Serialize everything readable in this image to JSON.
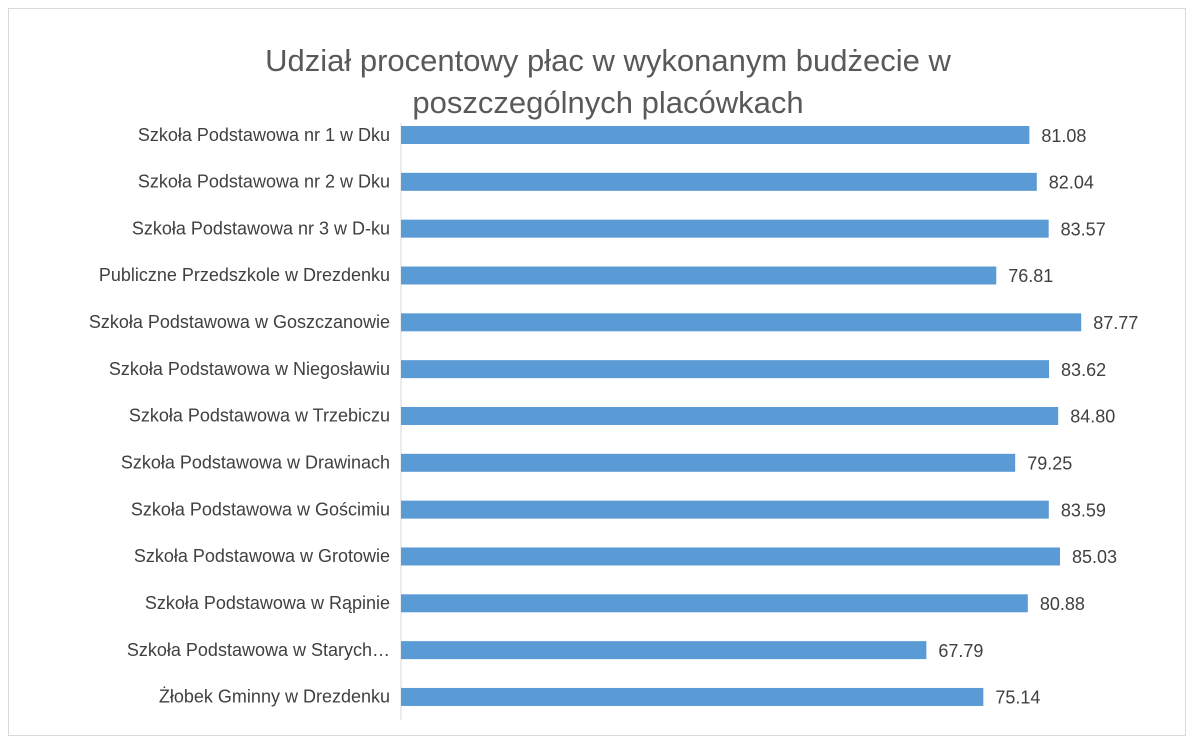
{
  "chart_data": {
    "type": "bar",
    "orientation": "horizontal",
    "title": "Udział procentowy płac w wykonanym budżecie w poszczególnych  placówkach",
    "categories": [
      "Szkoła Podstawowa nr 1 w Dku",
      "Szkoła Podstawowa nr 2 w Dku",
      "Szkoła Podstawowa nr 3 w D-ku",
      "Publiczne Przedszkole w Drezdenku",
      "Szkoła Podstawowa w Goszczanowie",
      "Szkoła Podstawowa w Niegosławiu",
      "Szkoła Podstawowa w Trzebiczu",
      "Szkoła Podstawowa w Drawinach",
      "Szkoła Podstawowa w Gościmiu",
      "Szkoła Podstawowa w Grotowie",
      "Szkoła Podstawowa w Rąpinie",
      "Szkoła Podstawowa w Starych…",
      "Żłobek Gminny w Drezdenku"
    ],
    "values": [
      81.08,
      82.04,
      83.57,
      76.81,
      87.77,
      83.62,
      84.8,
      79.25,
      83.59,
      85.03,
      80.88,
      67.79,
      75.14
    ],
    "value_labels": [
      "81.08",
      "82.04",
      "83.57",
      "76.81",
      "87.77",
      "83.62",
      "84.80",
      "79.25",
      "83.59",
      "85.03",
      "80.88",
      "67.79",
      "75.14"
    ],
    "color": "#5b9bd5",
    "xlim": [
      0,
      100
    ]
  }
}
